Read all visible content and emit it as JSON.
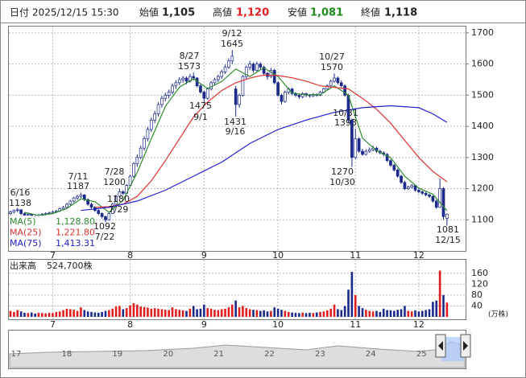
{
  "header": {
    "date_label": "日付",
    "date": "2025/12/15 15:30",
    "open_label": "始値",
    "open": "1,105",
    "high_label": "高値",
    "high": "1,120",
    "low_label": "安値",
    "low": "1,081",
    "close_label": "終値",
    "close": "1,118"
  },
  "chart_data": {
    "type": "candlestick",
    "xticks": [
      {
        "value": 12,
        "label": "7"
      },
      {
        "value": 34,
        "label": "8"
      },
      {
        "value": 55,
        "label": "9"
      },
      {
        "value": 76,
        "label": "10"
      },
      {
        "value": 98,
        "label": "11"
      },
      {
        "value": 116,
        "label": "12"
      }
    ],
    "ylim": [
      1000,
      1723
    ],
    "yticks": [
      1100,
      1200,
      1300,
      1400,
      1500,
      1600,
      1700
    ],
    "grid": true,
    "up_color": "#ffffff",
    "down_color": "#1c2a8c",
    "outline_color": "#1c2a8c",
    "candles": [
      [
        1120,
        1130,
        1115,
        1125
      ],
      [
        1125,
        1133,
        1120,
        1130
      ],
      [
        1130,
        1138,
        1124,
        1132
      ],
      [
        1132,
        1134,
        1116,
        1120
      ],
      [
        1120,
        1124,
        1110,
        1115
      ],
      [
        1115,
        1122,
        1110,
        1118
      ],
      [
        1118,
        1120,
        1106,
        1112
      ],
      [
        1112,
        1116,
        1104,
        1110
      ],
      [
        1110,
        1119,
        1107,
        1115
      ],
      [
        1115,
        1122,
        1111,
        1118
      ],
      [
        1118,
        1124,
        1114,
        1120
      ],
      [
        1120,
        1126,
        1116,
        1122
      ],
      [
        1122,
        1129,
        1118,
        1125
      ],
      [
        1125,
        1132,
        1121,
        1128
      ],
      [
        1128,
        1139,
        1125,
        1135
      ],
      [
        1135,
        1145,
        1131,
        1140
      ],
      [
        1140,
        1155,
        1136,
        1150
      ],
      [
        1150,
        1164,
        1146,
        1160
      ],
      [
        1160,
        1174,
        1155,
        1170
      ],
      [
        1170,
        1180,
        1164,
        1175
      ],
      [
        1175,
        1187,
        1170,
        1180
      ],
      [
        1180,
        1182,
        1160,
        1165
      ],
      [
        1165,
        1168,
        1145,
        1150
      ],
      [
        1150,
        1155,
        1136,
        1140
      ],
      [
        1140,
        1144,
        1125,
        1130
      ],
      [
        1130,
        1134,
        1115,
        1120
      ],
      [
        1120,
        1124,
        1104,
        1110
      ],
      [
        1110,
        1114,
        1092,
        1100
      ],
      [
        1100,
        1125,
        1098,
        1120
      ],
      [
        1120,
        1155,
        1118,
        1150
      ],
      [
        1150,
        1180,
        1145,
        1175
      ],
      [
        1175,
        1200,
        1170,
        1190
      ],
      [
        1190,
        1195,
        1180,
        1185
      ],
      [
        1185,
        1215,
        1182,
        1210
      ],
      [
        1210,
        1245,
        1205,
        1240
      ],
      [
        1240,
        1285,
        1235,
        1280
      ],
      [
        1280,
        1310,
        1270,
        1300
      ],
      [
        1300,
        1338,
        1295,
        1330
      ],
      [
        1330,
        1368,
        1322,
        1360
      ],
      [
        1360,
        1398,
        1352,
        1390
      ],
      [
        1390,
        1428,
        1382,
        1420
      ],
      [
        1420,
        1450,
        1410,
        1440
      ],
      [
        1440,
        1478,
        1432,
        1470
      ],
      [
        1470,
        1498,
        1460,
        1490
      ],
      [
        1490,
        1508,
        1480,
        1500
      ],
      [
        1500,
        1518,
        1490,
        1510
      ],
      [
        1510,
        1538,
        1502,
        1530
      ],
      [
        1530,
        1548,
        1520,
        1540
      ],
      [
        1540,
        1558,
        1532,
        1550
      ],
      [
        1550,
        1562,
        1540,
        1555
      ],
      [
        1555,
        1560,
        1535,
        1545
      ],
      [
        1545,
        1568,
        1540,
        1560
      ],
      [
        1560,
        1573,
        1548,
        1555
      ],
      [
        1555,
        1558,
        1525,
        1530
      ],
      [
        1530,
        1535,
        1505,
        1510
      ],
      [
        1510,
        1515,
        1475,
        1490
      ],
      [
        1490,
        1525,
        1485,
        1520
      ],
      [
        1520,
        1545,
        1515,
        1540
      ],
      [
        1540,
        1556,
        1532,
        1550
      ],
      [
        1550,
        1566,
        1542,
        1560
      ],
      [
        1560,
        1582,
        1552,
        1575
      ],
      [
        1575,
        1598,
        1568,
        1590
      ],
      [
        1590,
        1618,
        1584,
        1610
      ],
      [
        1610,
        1645,
        1600,
        1625
      ],
      [
        1520,
        1530,
        1431,
        1470
      ],
      [
        1470,
        1505,
        1460,
        1500
      ],
      [
        1500,
        1565,
        1495,
        1560
      ],
      [
        1560,
        1595,
        1552,
        1590
      ],
      [
        1590,
        1610,
        1580,
        1600
      ],
      [
        1600,
        1605,
        1572,
        1580
      ],
      [
        1580,
        1608,
        1575,
        1600
      ],
      [
        1600,
        1606,
        1582,
        1590
      ],
      [
        1590,
        1595,
        1562,
        1570
      ],
      [
        1570,
        1575,
        1550,
        1560
      ],
      [
        1560,
        1588,
        1555,
        1580
      ],
      [
        1580,
        1585,
        1535,
        1540
      ],
      [
        1540,
        1545,
        1495,
        1500
      ],
      [
        1500,
        1505,
        1470,
        1480
      ],
      [
        1480,
        1515,
        1475,
        1510
      ],
      [
        1510,
        1525,
        1502,
        1520
      ],
      [
        1520,
        1524,
        1500,
        1505
      ],
      [
        1505,
        1510,
        1494,
        1500
      ],
      [
        1500,
        1504,
        1488,
        1495
      ],
      [
        1495,
        1510,
        1490,
        1505
      ],
      [
        1505,
        1508,
        1494,
        1500
      ],
      [
        1500,
        1504,
        1492,
        1498
      ],
      [
        1498,
        1507,
        1494,
        1502
      ],
      [
        1502,
        1506,
        1495,
        1500
      ],
      [
        1500,
        1514,
        1497,
        1510
      ],
      [
        1510,
        1524,
        1506,
        1520
      ],
      [
        1520,
        1535,
        1515,
        1530
      ],
      [
        1530,
        1550,
        1525,
        1545
      ],
      [
        1545,
        1570,
        1540,
        1555
      ],
      [
        1555,
        1560,
        1535,
        1540
      ],
      [
        1540,
        1548,
        1525,
        1530
      ],
      [
        1530,
        1535,
        1495,
        1500
      ],
      [
        1500,
        1505,
        1410,
        1420
      ],
      [
        1420,
        1425,
        1270,
        1300
      ],
      [
        1300,
        1393,
        1295,
        1360
      ],
      [
        1360,
        1365,
        1315,
        1320
      ],
      [
        1320,
        1328,
        1305,
        1310
      ],
      [
        1310,
        1326,
        1306,
        1320
      ],
      [
        1320,
        1332,
        1315,
        1325
      ],
      [
        1325,
        1338,
        1320,
        1330
      ],
      [
        1330,
        1334,
        1315,
        1320
      ],
      [
        1320,
        1325,
        1310,
        1315
      ],
      [
        1315,
        1320,
        1304,
        1310
      ],
      [
        1310,
        1314,
        1285,
        1290
      ],
      [
        1290,
        1295,
        1270,
        1275
      ],
      [
        1275,
        1280,
        1255,
        1260
      ],
      [
        1260,
        1265,
        1235,
        1240
      ],
      [
        1240,
        1245,
        1215,
        1220
      ],
      [
        1220,
        1225,
        1195,
        1200
      ],
      [
        1200,
        1210,
        1196,
        1205
      ],
      [
        1205,
        1215,
        1200,
        1210
      ],
      [
        1210,
        1213,
        1190,
        1195
      ],
      [
        1195,
        1200,
        1185,
        1190
      ],
      [
        1190,
        1194,
        1180,
        1185
      ],
      [
        1185,
        1190,
        1175,
        1180
      ],
      [
        1180,
        1184,
        1170,
        1175
      ],
      [
        1175,
        1178,
        1155,
        1160
      ],
      [
        1160,
        1165,
        1135,
        1140
      ],
      [
        1140,
        1232,
        1138,
        1200
      ],
      [
        1200,
        1205,
        1100,
        1110
      ],
      [
        1105,
        1120,
        1081,
        1118
      ]
    ],
    "moving_averages": [
      {
        "name": "MA(5)",
        "value_label": "1,128.80",
        "color": "#2e8b2e",
        "x": [
          4,
          8,
          12,
          16,
          20,
          24,
          28,
          32,
          36,
          40,
          44,
          48,
          52,
          56,
          60,
          64,
          68,
          72,
          76,
          80,
          84,
          88,
          92,
          96,
          100,
          104,
          108,
          112,
          116,
          120,
          124
        ],
        "values": [
          1124,
          1114,
          1120,
          1136,
          1167,
          1158,
          1124,
          1163,
          1252,
          1360,
          1464,
          1526,
          1553,
          1521,
          1544,
          1584,
          1560,
          1588,
          1560,
          1507,
          1501,
          1502,
          1530,
          1500,
          1362,
          1322,
          1300,
          1240,
          1202,
          1182,
          1129
        ]
      },
      {
        "name": "MA(25)",
        "value_label": "1,221.80",
        "color": "#e03030",
        "x": [
          24,
          28,
          32,
          36,
          40,
          44,
          48,
          52,
          56,
          60,
          64,
          68,
          72,
          76,
          80,
          84,
          88,
          92,
          96,
          100,
          104,
          108,
          112,
          116,
          120,
          124
        ],
        "values": [
          1140,
          1142,
          1150,
          1175,
          1225,
          1290,
          1360,
          1430,
          1478,
          1515,
          1540,
          1555,
          1565,
          1563,
          1556,
          1545,
          1530,
          1525,
          1520,
          1490,
          1455,
          1410,
          1355,
          1300,
          1255,
          1222
        ]
      },
      {
        "name": "MA(75)",
        "value_label": "1,413.31",
        "color": "#2020d0",
        "x": [
          20,
          28,
          36,
          44,
          52,
          60,
          68,
          76,
          84,
          92,
          100,
          108,
          116,
          120,
          124
        ],
        "values": [
          1130,
          1140,
          1160,
          1195,
          1240,
          1285,
          1345,
          1390,
          1420,
          1445,
          1460,
          1466,
          1460,
          1440,
          1413
        ]
      }
    ],
    "annotations": [
      {
        "date": "6/16",
        "price": 1138
      },
      {
        "date": "7/11",
        "price": 1187
      },
      {
        "date": "7/28",
        "price": 1200
      },
      {
        "date": "7/29",
        "price": 1180
      },
      {
        "date": "7/22",
        "price": 1092
      },
      {
        "date": "8/27",
        "price": 1573
      },
      {
        "date": "9/12",
        "price": 1645
      },
      {
        "date": "9/1",
        "price": 1475
      },
      {
        "date": "9/16",
        "price": 1431
      },
      {
        "date": "10/27",
        "price": 1570
      },
      {
        "date": "10/31",
        "price": 1393
      },
      {
        "date": "10/30",
        "price": 1270
      },
      {
        "date": "12/15",
        "price": 1081
      }
    ],
    "volume": {
      "label": "出来高",
      "value_label": "524,700株",
      "unit": "(万株)",
      "ylim": [
        0,
        180
      ],
      "yticks": [
        40,
        80,
        120,
        160
      ],
      "values": [
        22,
        18,
        25,
        20,
        15,
        14,
        16,
        12,
        15,
        14,
        13,
        15,
        14,
        18,
        20,
        25,
        30,
        28,
        26,
        22,
        35,
        25,
        20,
        18,
        16,
        15,
        18,
        22,
        25,
        30,
        38,
        40,
        28,
        32,
        42,
        50,
        45,
        38,
        36,
        34,
        30,
        32,
        30,
        28,
        26,
        25,
        35,
        28,
        26,
        24,
        22,
        30,
        40,
        28,
        30,
        45,
        32,
        30,
        26,
        25,
        28,
        30,
        35,
        45,
        60,
        35,
        40,
        32,
        28,
        26,
        25,
        22,
        24,
        20,
        22,
        35,
        30,
        26,
        22,
        18,
        16,
        15,
        14,
        16,
        14,
        15,
        14,
        16,
        18,
        20,
        24,
        30,
        45,
        28,
        25,
        40,
        100,
        165,
        80,
        40,
        32,
        26,
        22,
        20,
        22,
        18,
        30,
        25,
        24,
        22,
        26,
        28,
        40,
        22,
        20,
        24,
        20,
        22,
        25,
        28,
        55,
        60,
        170,
        80,
        52.47
      ]
    },
    "navigator": {
      "labels": [
        "17",
        "18",
        "19",
        "20",
        "21",
        "22",
        "23",
        "24",
        "25"
      ]
    }
  }
}
